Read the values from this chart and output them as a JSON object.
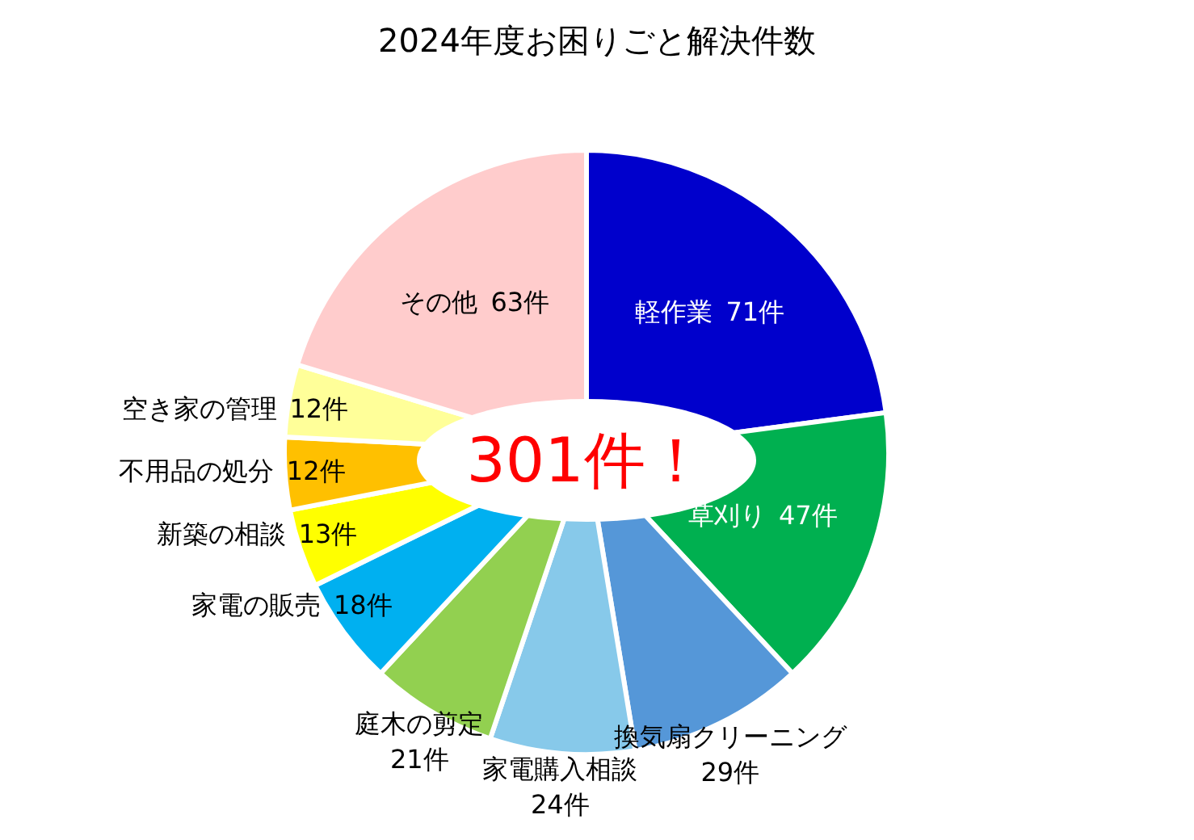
{
  "chart_data": {
    "type": "pie",
    "title": "2024年度お困りごと解決件数",
    "categories": [
      "軽作業",
      "草刈り",
      "換気扇クリーニング",
      "家電購入相談",
      "庭木の剪定",
      "家電の販売",
      "新築の相談",
      "不用品の処分",
      "空き家の管理",
      "その他"
    ],
    "values": [
      71,
      47,
      29,
      24,
      21,
      18,
      13,
      12,
      12,
      63
    ],
    "value_labels": [
      "71件",
      "47件",
      "29件",
      "24件",
      "21件",
      "18件",
      "13件",
      "12件",
      "12件",
      "63件"
    ],
    "colors": [
      "#0000cc",
      "#00b050",
      "#5597d8",
      "#87c9ea",
      "#92d050",
      "#00b0f0",
      "#ffff00",
      "#ffc000",
      "#ffff99",
      "#ffcccc"
    ],
    "annotations": [
      "301件！"
    ]
  }
}
